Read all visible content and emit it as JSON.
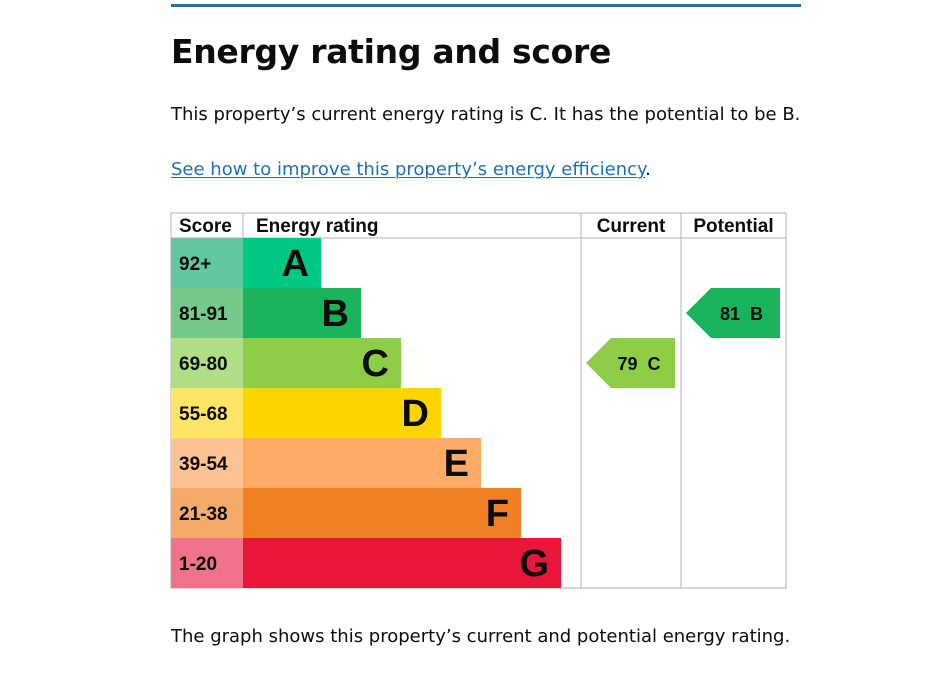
{
  "heading": "Energy rating and score",
  "intro": "This property’s current energy rating is C. It has the potential to be B.",
  "link_text": "See how to improve this property’s energy efficiency",
  "link_suffix": ".",
  "footer": "The graph shows this property’s current and potential energy rating.",
  "chart_data": {
    "type": "table",
    "columns": [
      "Score",
      "Energy rating",
      "Current",
      "Potential"
    ],
    "bands": [
      {
        "letter": "A",
        "score_range": "92+",
        "color": "#00c781",
        "score_bg": "#63c8a1"
      },
      {
        "letter": "B",
        "score_range": "81-91",
        "color": "#19b459",
        "score_bg": "#74c98b"
      },
      {
        "letter": "C",
        "score_range": "69-80",
        "color": "#8dce46",
        "score_bg": "#b0de84"
      },
      {
        "letter": "D",
        "score_range": "55-68",
        "color": "#ffd500",
        "score_bg": "#ffe566"
      },
      {
        "letter": "E",
        "score_range": "39-54",
        "color": "#fcaa65",
        "score_bg": "#fdc394"
      },
      {
        "letter": "F",
        "score_range": "21-38",
        "color": "#ef8023",
        "score_bg": "#f4aa6b"
      },
      {
        "letter": "G",
        "score_range": "1-20",
        "color": "#e9153b",
        "score_bg": "#f0738a"
      }
    ],
    "current": {
      "score": 79,
      "rating": "C",
      "label": "79 C",
      "color": "#8dce46"
    },
    "potential": {
      "score": 81,
      "rating": "B",
      "label": "81 B",
      "color": "#19b459"
    }
  }
}
